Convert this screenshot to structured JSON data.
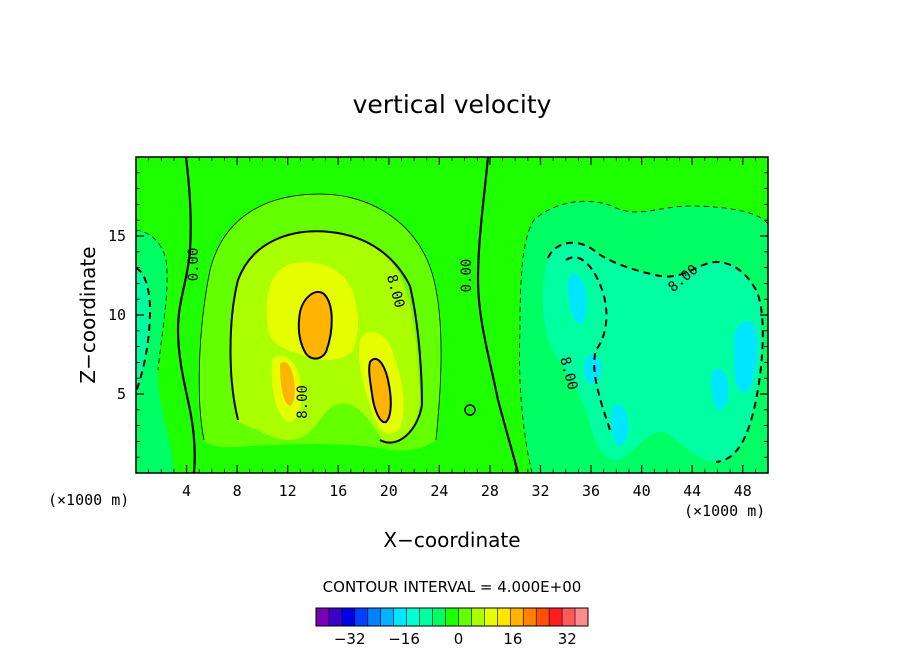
{
  "chart_data": {
    "type": "heatmap",
    "title": "vertical velocity",
    "xlabel": "X−coordinate",
    "ylabel": "Z−coordinate",
    "x_unit_left": "(×1000 m)",
    "x_unit_right": "(×1000 m)",
    "xlim": [
      0,
      50
    ],
    "ylim": [
      0,
      20
    ],
    "x_ticks": [
      4,
      8,
      12,
      16,
      20,
      24,
      28,
      32,
      36,
      40,
      44,
      48
    ],
    "y_ticks": [
      5,
      10,
      15
    ],
    "contour_interval_label": "CONTOUR INTERVAL = 4.000E+00",
    "contour_interval": 4,
    "colorbar": {
      "min": -40,
      "max": 36,
      "step": 4,
      "tick_values": [
        -32,
        -16,
        0,
        16,
        32
      ],
      "tick_labels": [
        "−32",
        "−16",
        "0",
        "16",
        "32"
      ],
      "colors": [
        "#7a00b4",
        "#3c00c8",
        "#0000e6",
        "#0040ff",
        "#0080ff",
        "#00b4ff",
        "#00e6ff",
        "#00ffd2",
        "#00ffa0",
        "#00ff64",
        "#1eff00",
        "#64ff00",
        "#aaff00",
        "#e6ff00",
        "#ffe600",
        "#ffb400",
        "#ff8200",
        "#ff5000",
        "#ff1e1e",
        "#ff5a5a",
        "#ff8c8c"
      ]
    },
    "contour_labels": [
      {
        "text": "0.00",
        "x": 4.6,
        "z": 13.2,
        "angle": -90
      },
      {
        "text": "0.00",
        "x": 26.2,
        "z": 12.5,
        "angle": -90
      },
      {
        "text": "8.00",
        "x": 20.5,
        "z": 11.5,
        "angle": 75
      },
      {
        "text": "8.00",
        "x": 13.2,
        "z": 4.5,
        "angle": -90
      },
      {
        "text": "8.00",
        "x": 43.3,
        "z": 12.3,
        "angle": -40
      },
      {
        "text": "8.00",
        "x": 34.2,
        "z": 6.3,
        "angle": 75
      }
    ],
    "features": [
      {
        "sign": "positive",
        "label": "updraft core",
        "x": 14.2,
        "z": 10.2,
        "value": 20
      },
      {
        "sign": "positive",
        "label": "updraft lobe",
        "x": 12.2,
        "z": 6.5,
        "value": 18
      },
      {
        "sign": "positive",
        "label": "updraft lobe",
        "x": 19.5,
        "z": 5.5,
        "value": 18
      },
      {
        "sign": "negative",
        "label": "downdraft",
        "x": 35.2,
        "z": 10.8,
        "value": -14
      },
      {
        "sign": "negative",
        "label": "downdraft",
        "x": 48.0,
        "z": 7.5,
        "value": -14
      }
    ]
  }
}
